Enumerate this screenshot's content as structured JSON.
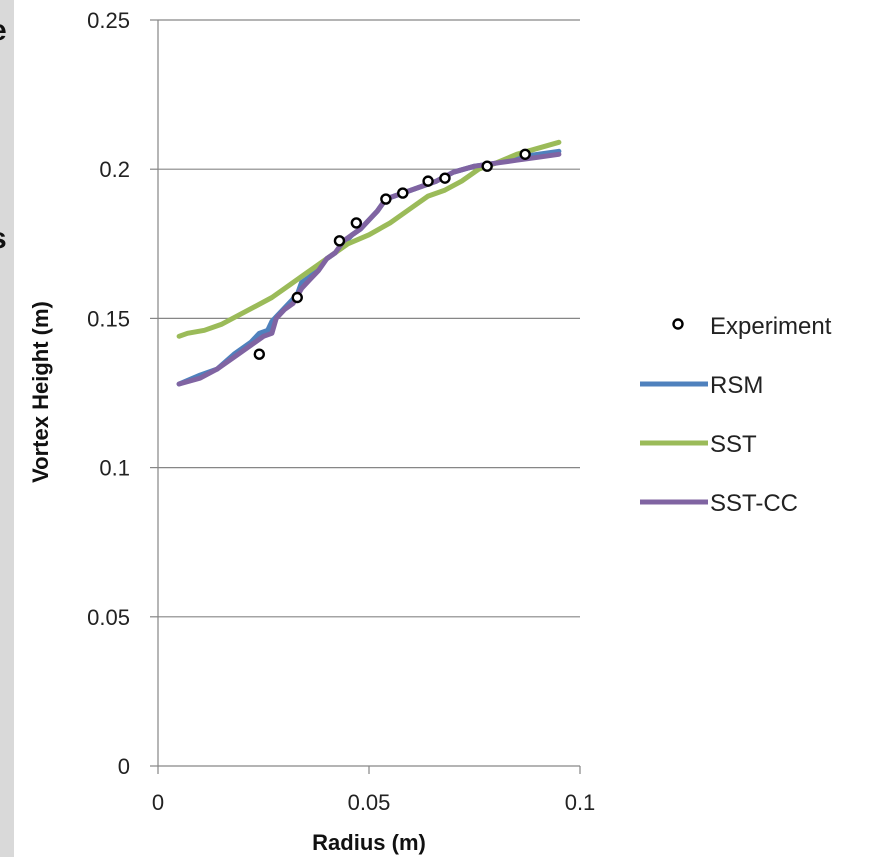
{
  "page": {
    "edge_text_top": "e",
    "edge_text_mid": "s"
  },
  "chart_data": {
    "type": "line",
    "title": "",
    "xlabel": "Radius (m)",
    "ylabel": "Vortex Height (m)",
    "xlim": [
      0,
      0.1
    ],
    "ylim": [
      0,
      0.25
    ],
    "x_ticks": [
      "0",
      "0.05",
      "0.1"
    ],
    "y_ticks": [
      "0",
      "0.05",
      "0.1",
      "0.15",
      "0.2",
      "0.25"
    ],
    "grid": "horizontal",
    "legend_position": "right",
    "series": [
      {
        "name": "Experiment",
        "kind": "scatter",
        "marker": "open-circle",
        "color": "#000000",
        "points": [
          [
            0.024,
            0.138
          ],
          [
            0.033,
            0.157
          ],
          [
            0.043,
            0.176
          ],
          [
            0.047,
            0.182
          ],
          [
            0.054,
            0.19
          ],
          [
            0.058,
            0.192
          ],
          [
            0.064,
            0.196
          ],
          [
            0.068,
            0.197
          ],
          [
            0.078,
            0.201
          ],
          [
            0.087,
            0.205
          ]
        ]
      },
      {
        "name": "RSM",
        "kind": "line",
        "color": "#4f81bd",
        "points": [
          [
            0.005,
            0.128
          ],
          [
            0.01,
            0.131
          ],
          [
            0.014,
            0.133
          ],
          [
            0.018,
            0.138
          ],
          [
            0.022,
            0.142
          ],
          [
            0.024,
            0.145
          ],
          [
            0.026,
            0.146
          ],
          [
            0.027,
            0.149
          ],
          [
            0.029,
            0.152
          ],
          [
            0.031,
            0.155
          ],
          [
            0.033,
            0.158
          ],
          [
            0.034,
            0.162
          ],
          [
            0.036,
            0.164
          ],
          [
            0.038,
            0.167
          ],
          [
            0.04,
            0.17
          ],
          [
            0.042,
            0.172
          ],
          [
            0.044,
            0.175
          ],
          [
            0.046,
            0.178
          ],
          [
            0.048,
            0.18
          ],
          [
            0.05,
            0.183
          ],
          [
            0.052,
            0.186
          ],
          [
            0.054,
            0.19
          ],
          [
            0.058,
            0.192
          ],
          [
            0.062,
            0.194
          ],
          [
            0.066,
            0.196
          ],
          [
            0.07,
            0.199
          ],
          [
            0.075,
            0.201
          ],
          [
            0.08,
            0.202
          ],
          [
            0.085,
            0.204
          ],
          [
            0.09,
            0.205
          ],
          [
            0.095,
            0.206
          ]
        ]
      },
      {
        "name": "SST",
        "kind": "line",
        "color": "#9bbb59",
        "points": [
          [
            0.005,
            0.144
          ],
          [
            0.007,
            0.145
          ],
          [
            0.011,
            0.146
          ],
          [
            0.015,
            0.148
          ],
          [
            0.019,
            0.151
          ],
          [
            0.023,
            0.154
          ],
          [
            0.027,
            0.157
          ],
          [
            0.031,
            0.161
          ],
          [
            0.035,
            0.165
          ],
          [
            0.04,
            0.17
          ],
          [
            0.045,
            0.175
          ],
          [
            0.05,
            0.178
          ],
          [
            0.055,
            0.182
          ],
          [
            0.06,
            0.187
          ],
          [
            0.064,
            0.191
          ],
          [
            0.068,
            0.193
          ],
          [
            0.072,
            0.196
          ],
          [
            0.076,
            0.2
          ],
          [
            0.08,
            0.202
          ],
          [
            0.085,
            0.205
          ],
          [
            0.09,
            0.207
          ],
          [
            0.095,
            0.209
          ]
        ]
      },
      {
        "name": "SST-CC",
        "kind": "line",
        "color": "#8064a2",
        "points": [
          [
            0.005,
            0.128
          ],
          [
            0.01,
            0.13
          ],
          [
            0.014,
            0.133
          ],
          [
            0.018,
            0.137
          ],
          [
            0.022,
            0.141
          ],
          [
            0.025,
            0.144
          ],
          [
            0.027,
            0.145
          ],
          [
            0.028,
            0.15
          ],
          [
            0.03,
            0.153
          ],
          [
            0.032,
            0.155
          ],
          [
            0.034,
            0.16
          ],
          [
            0.036,
            0.163
          ],
          [
            0.038,
            0.166
          ],
          [
            0.04,
            0.17
          ],
          [
            0.042,
            0.172
          ],
          [
            0.044,
            0.176
          ],
          [
            0.046,
            0.178
          ],
          [
            0.048,
            0.18
          ],
          [
            0.05,
            0.183
          ],
          [
            0.052,
            0.186
          ],
          [
            0.054,
            0.19
          ],
          [
            0.058,
            0.192
          ],
          [
            0.062,
            0.194
          ],
          [
            0.066,
            0.196
          ],
          [
            0.07,
            0.199
          ],
          [
            0.075,
            0.201
          ],
          [
            0.08,
            0.202
          ],
          [
            0.085,
            0.203
          ],
          [
            0.09,
            0.204
          ],
          [
            0.095,
            0.205
          ]
        ]
      }
    ]
  }
}
